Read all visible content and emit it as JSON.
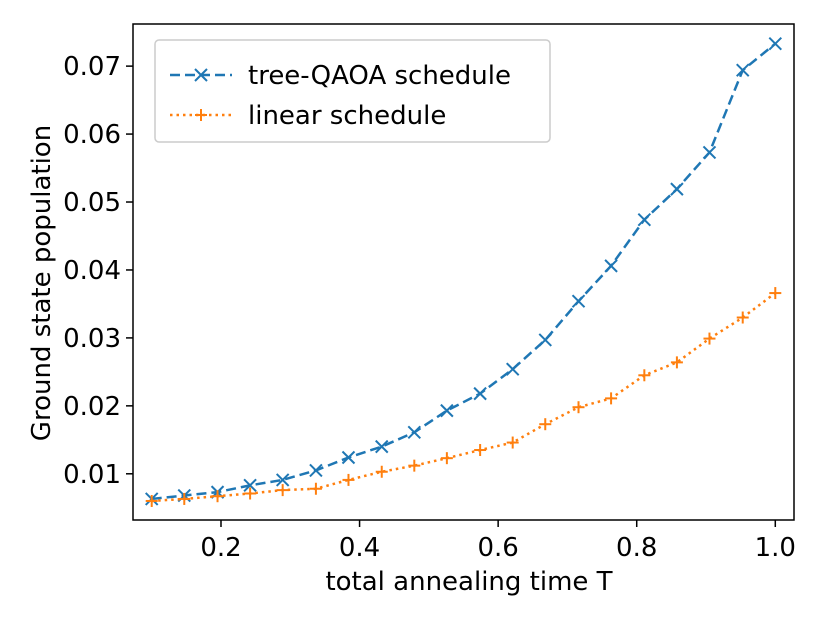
{
  "chart_data": {
    "type": "line",
    "title": "",
    "xlabel": "total annealing time T",
    "ylabel": "Ground state population",
    "xlim": [
      0.073,
      1.027
    ],
    "ylim": [
      0.0032,
      0.0762
    ],
    "x_ticks": [
      0.2,
      0.4,
      0.6,
      0.8,
      1.0
    ],
    "x_tick_labels": [
      "0.2",
      "0.4",
      "0.6",
      "0.8",
      "1.0"
    ],
    "y_ticks": [
      0.01,
      0.02,
      0.03,
      0.04,
      0.05,
      0.06,
      0.07
    ],
    "y_tick_labels": [
      "0.01",
      "0.02",
      "0.03",
      "0.04",
      "0.05",
      "0.06",
      "0.07"
    ],
    "grid": false,
    "legend_position": "top-left",
    "x": [
      0.1,
      0.147,
      0.195,
      0.242,
      0.289,
      0.337,
      0.384,
      0.432,
      0.479,
      0.526,
      0.574,
      0.621,
      0.668,
      0.716,
      0.763,
      0.811,
      0.858,
      0.905,
      0.953,
      1.0
    ],
    "series": [
      {
        "name": "tree-QAOA schedule",
        "color": "#1f77b4",
        "line_style": "dashed",
        "marker": "x",
        "values": [
          0.0063,
          0.0068,
          0.0073,
          0.0083,
          0.0091,
          0.0105,
          0.0124,
          0.014,
          0.0161,
          0.0193,
          0.0218,
          0.0254,
          0.0297,
          0.0354,
          0.0406,
          0.0474,
          0.0519,
          0.0573,
          0.0694,
          0.0733
        ]
      },
      {
        "name": "linear schedule",
        "color": "#ff7f0e",
        "line_style": "dotted",
        "marker": "+",
        "values": [
          0.006,
          0.0063,
          0.0067,
          0.0071,
          0.0076,
          0.0078,
          0.0091,
          0.0103,
          0.0112,
          0.0123,
          0.0135,
          0.0146,
          0.0173,
          0.0198,
          0.0211,
          0.0245,
          0.0264,
          0.0299,
          0.033,
          0.0366
        ]
      }
    ]
  }
}
